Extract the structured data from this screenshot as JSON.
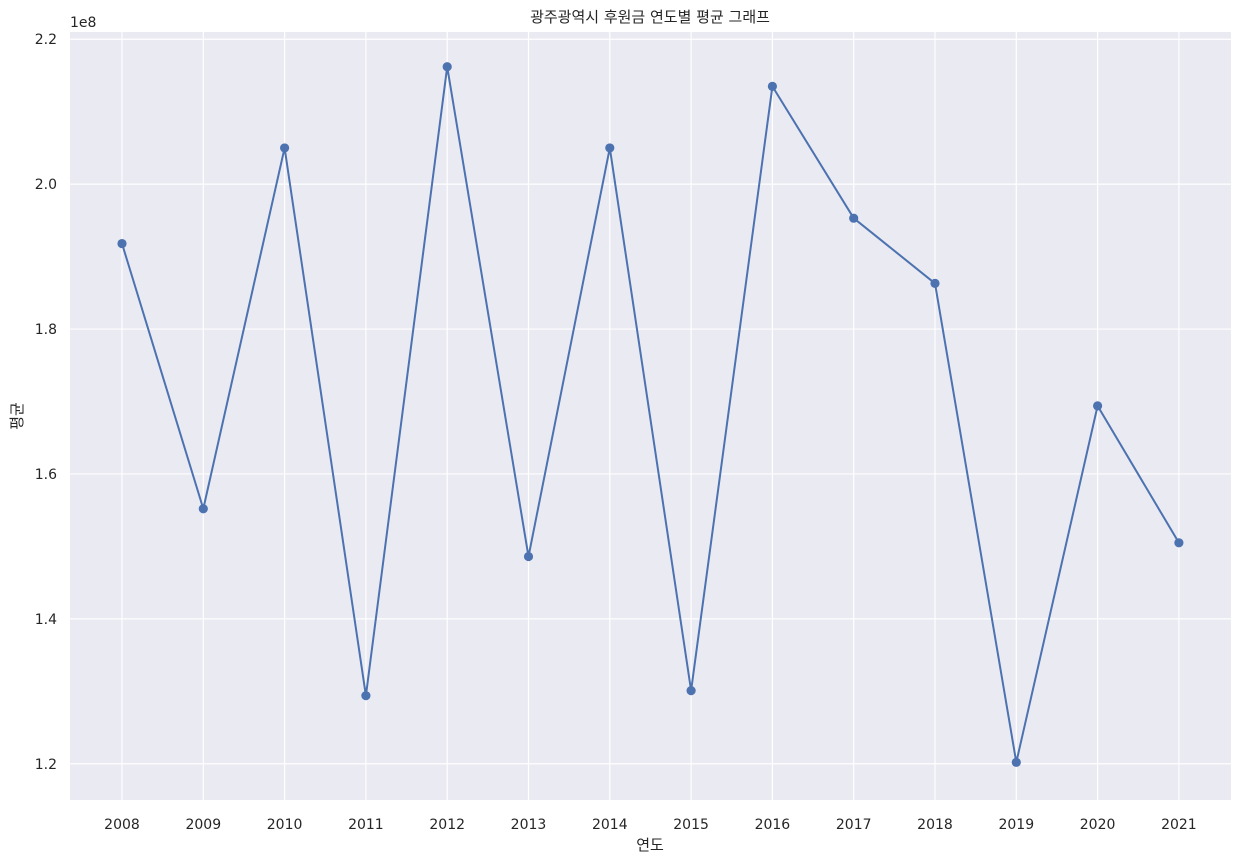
{
  "chart_data": {
    "type": "line",
    "title": "광주광역시 후원금 연도별 평균 그래프",
    "xlabel": "연도",
    "ylabel": "평균",
    "offset_label": "1e8",
    "y_scale_factor": 100000000,
    "categories": [
      "2008",
      "2009",
      "2010",
      "2011",
      "2012",
      "2013",
      "2014",
      "2015",
      "2016",
      "2017",
      "2018",
      "2019",
      "2020",
      "2021"
    ],
    "series": [
      {
        "name": "",
        "color": "#4c72b0",
        "marker": "circle",
        "values": [
          1.918,
          1.552,
          2.05,
          1.294,
          2.162,
          1.486,
          2.05,
          1.301,
          2.135,
          1.953,
          1.863,
          1.202,
          1.694,
          1.505
        ]
      }
    ],
    "ylim": [
      1.15,
      2.21
    ],
    "yticks": [
      1.2,
      1.4,
      1.6,
      1.8,
      2.0,
      2.2
    ],
    "ytick_labels": [
      "1.2",
      "1.4",
      "1.6",
      "1.8",
      "2.0",
      "2.2"
    ],
    "grid": true,
    "background": "#eaeaf2"
  }
}
